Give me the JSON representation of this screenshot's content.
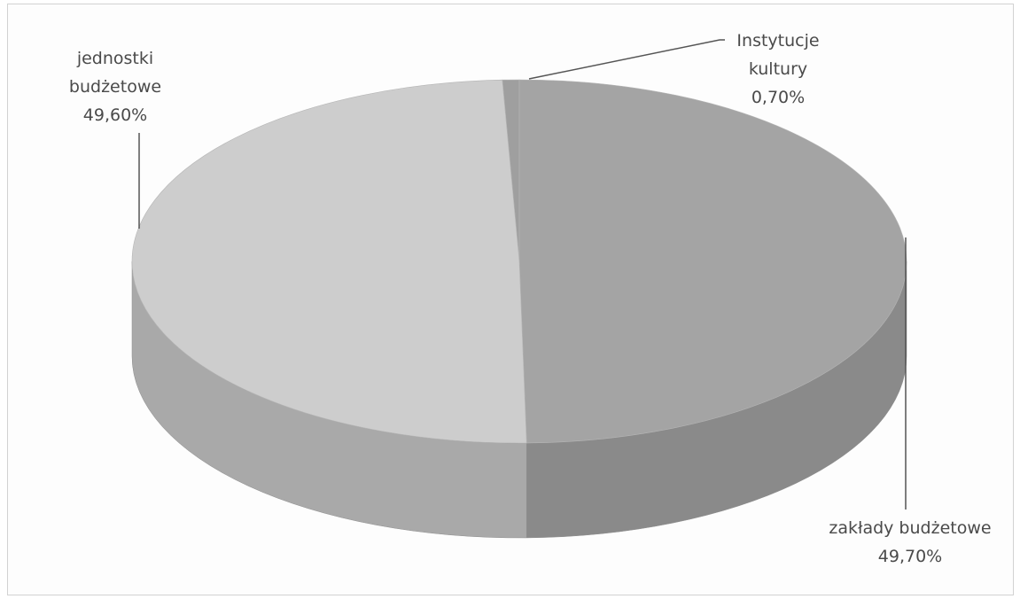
{
  "chart_data": {
    "type": "pie",
    "three_d": true,
    "legend": "none",
    "slices": [
      {
        "name": "jednostki budżetowe",
        "label_lines": [
          "jednostki",
          "budżetowe"
        ],
        "value_label": "49,60%",
        "value": 49.6,
        "top_color": "#cdcdcd",
        "side_color": "#a9a9a9"
      },
      {
        "name": "Instytucje kultury",
        "label_lines": [
          "Instytucje",
          "kultury"
        ],
        "value_label": "0,70%",
        "value": 0.7,
        "top_color": "#9f9f9f",
        "side_color": "#7c7c7c"
      },
      {
        "name": "zakłady budżetowe",
        "label_lines": [
          "zakłady budżetowe"
        ],
        "value_label": "49,70%",
        "value": 49.7,
        "top_color": "#a4a4a4",
        "side_color": "#8a8a8a"
      }
    ]
  }
}
